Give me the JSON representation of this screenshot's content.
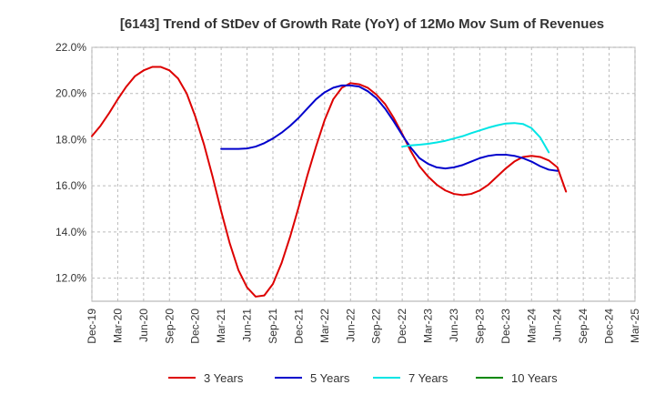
{
  "chart_data": {
    "type": "line",
    "title": "[6143]  Trend of StDev of Growth Rate (YoY) of 12Mo Mov Sum of Revenues",
    "xlabel": "",
    "ylabel": "",
    "ylim": [
      11.0,
      22.0
    ],
    "yticks": [
      12.0,
      14.0,
      16.0,
      18.0,
      20.0,
      22.0
    ],
    "ytick_labels": [
      "12.0%",
      "14.0%",
      "16.0%",
      "18.0%",
      "20.0%",
      "22.0%"
    ],
    "grid": true,
    "x_tick_labels": [
      "Dec-19",
      "Mar-20",
      "Jun-20",
      "Sep-20",
      "Dec-20",
      "Mar-21",
      "Jun-21",
      "Sep-21",
      "Dec-21",
      "Mar-22",
      "Jun-22",
      "Sep-22",
      "Dec-22",
      "Mar-23",
      "Jun-23",
      "Sep-23",
      "Dec-23",
      "Mar-24",
      "Jun-24",
      "Sep-24",
      "Dec-24",
      "Mar-25"
    ],
    "legend_position": "bottom",
    "series": [
      {
        "name": "3 Years",
        "color": "#dd0000",
        "start_index": 0,
        "values": [
          18.15,
          18.6,
          19.15,
          19.75,
          20.3,
          20.75,
          21.0,
          21.15,
          21.15,
          21.0,
          20.65,
          20.0,
          19.0,
          17.8,
          16.4,
          14.9,
          13.5,
          12.35,
          11.6,
          11.2,
          11.25,
          11.75,
          12.65,
          13.8,
          15.1,
          16.45,
          17.7,
          18.85,
          19.75,
          20.25,
          20.45,
          20.4,
          20.25,
          19.95,
          19.55,
          18.95,
          18.25,
          17.5,
          16.85,
          16.4,
          16.05,
          15.8,
          15.65,
          15.6,
          15.65,
          15.8,
          16.05,
          16.4,
          16.75,
          17.05,
          17.25,
          17.3,
          17.25,
          17.1,
          16.8,
          15.75
        ]
      },
      {
        "name": "5 Years",
        "color": "#0000cc",
        "start_index": 15,
        "values": [
          17.6,
          17.6,
          17.6,
          17.62,
          17.7,
          17.85,
          18.05,
          18.3,
          18.6,
          18.95,
          19.35,
          19.75,
          20.05,
          20.25,
          20.35,
          20.35,
          20.3,
          20.1,
          19.8,
          19.35,
          18.8,
          18.2,
          17.65,
          17.2,
          16.95,
          16.8,
          16.75,
          16.8,
          16.9,
          17.05,
          17.2,
          17.3,
          17.35,
          17.35,
          17.3,
          17.2,
          17.05,
          16.85,
          16.7,
          16.65
        ]
      },
      {
        "name": "7 Years",
        "color": "#00e5e5",
        "start_index": 36,
        "values": [
          17.7,
          17.75,
          17.78,
          17.82,
          17.88,
          17.95,
          18.05,
          18.15,
          18.28,
          18.4,
          18.52,
          18.62,
          18.7,
          18.72,
          18.68,
          18.5,
          18.1,
          17.45
        ]
      },
      {
        "name": "10 Years",
        "color": "#008800",
        "start_index": 0,
        "values": []
      }
    ]
  }
}
